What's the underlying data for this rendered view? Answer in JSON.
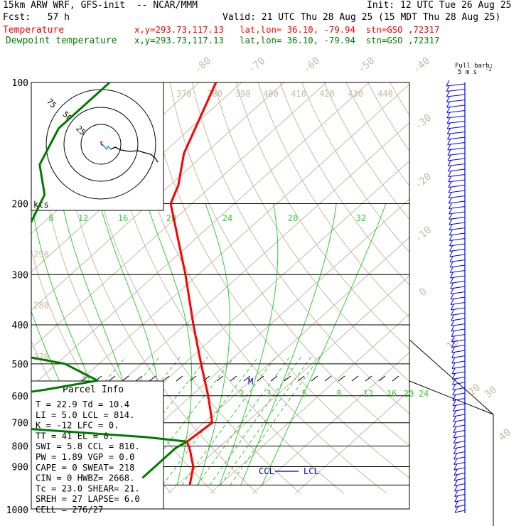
{
  "header": {
    "title": "15km ARW WRF, GFS-init  -- NCAR/MMM",
    "init": "Init: 12 UTC Tue 26 Aug 25",
    "fcst": "Fcst:   57 h",
    "valid": "Valid: 21 UTC Thu 28 Aug 25 (15 MDT Thu 28 Aug 25)",
    "temp_label": "Temperature",
    "temp_info": "x,y=293.73,117.13   lat,lon= 36.10, -79.94  stn=GSO ,72317",
    "dew_label": "Dewpoint temperature",
    "dew_info": "x,y=293.73,117.13   lat,lon= 36.10, -79.94  stn=GSO ,72317"
  },
  "colors": {
    "temperature": "#ff0000",
    "dewpoint": "#007a00",
    "isotherm": "#c9b9a3",
    "mixing_ratio": "#33cc33",
    "wind": "#0000ff",
    "parcel": "#0000aa"
  },
  "full_barb": "Full barb:",
  "barb_unit": "5 m s",
  "barb_unit_sup": "-1",
  "hodo": {
    "rings": [
      "75",
      "50",
      "25"
    ],
    "unit": "kts"
  },
  "parcel_info": {
    "title": "Parcel Info",
    "rows": [
      "T  =  22.9 Td = 10.4",
      "LI =   5.0 LCL =  814.",
      "K  =   -12 LFC =    0.",
      "TT =    41 EL  =    0.",
      "SWI =  5.8 CCL =  810.",
      "PW =  1.89 VGP =   0.0",
      "CAPE =   0 SWEAT=  218",
      "CIN =    0 HWBZ= 2668.",
      "Tc =  23.0 SHEAR=  21.",
      "SREH =  27 LAPSE=  6.0",
      "CELL = 276/27"
    ]
  },
  "annotations": {
    "ccl": "CCL",
    "lcl": "LCL",
    "melting": "M"
  },
  "chart_data": {
    "type": "line",
    "title": "",
    "xlabel": "",
    "ylabel": "",
    "pressure_levels": [
      "100",
      "200",
      "300",
      "400",
      "500",
      "600",
      "700",
      "800",
      "900",
      "1000"
    ],
    "isotherm_labels": [
      "-80",
      "-70",
      "-60",
      "-50",
      "-40",
      "-30",
      "-20",
      "-10",
      "0",
      "10",
      "20",
      "30",
      "40"
    ],
    "theta_labels": [
      "370",
      "380",
      "390",
      "400",
      "410",
      "420",
      "430",
      "440",
      "290",
      "280",
      "270"
    ],
    "mixing_labels_top": [
      "8",
      "12",
      "16",
      "20",
      "24",
      "28",
      "32"
    ],
    "mixing_labels_low": [
      "2",
      "3",
      "5",
      "8",
      "12",
      "16",
      "20",
      "24"
    ],
    "series": [
      {
        "name": "Temperature",
        "pressure": [
          100,
          150,
          180,
          200,
          300,
          400,
          500,
          600,
          700,
          780,
          820,
          900,
          1000
        ],
        "temperature": [
          -76,
          -65,
          -58,
          -55,
          -33,
          -18,
          -6,
          4,
          12,
          11,
          14,
          19,
          23
        ]
      },
      {
        "name": "Dewpoint temperature",
        "pressure": [
          100,
          130,
          160,
          190,
          250,
          280,
          300,
          360,
          400,
          440,
          460,
          500,
          550,
          580,
          620,
          680,
          760,
          780,
          810,
          860,
          960
        ],
        "dewpoint": [
          -101,
          -101,
          -96,
          -87,
          -80,
          -80,
          -72,
          -62,
          -58,
          -62,
          -60,
          -38,
          -26,
          -36,
          -52,
          -70,
          0,
          11,
          10,
          10,
          10
        ]
      }
    ]
  }
}
